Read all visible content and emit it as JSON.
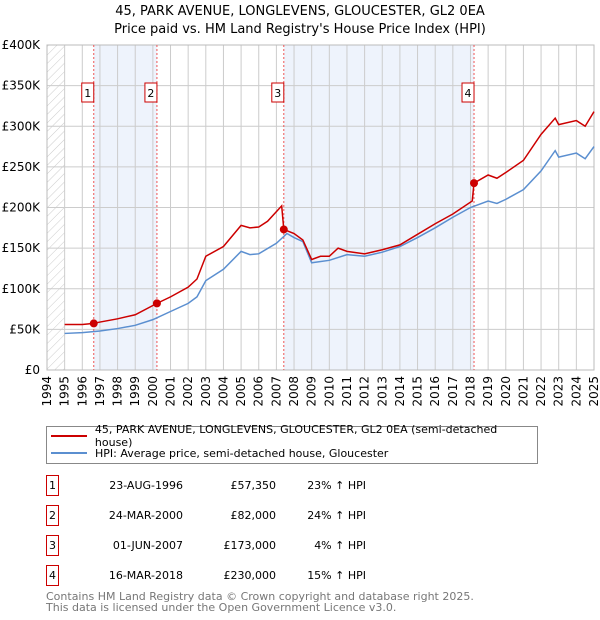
{
  "chart_data": {
    "type": "line",
    "title": "45, PARK AVENUE, LONGLEVENS, GLOUCESTER, GL2 0EA",
    "subtitle": "Price paid vs. HM Land Registry's House Price Index (HPI)",
    "xlim": [
      1994,
      2025
    ],
    "ylim": [
      0,
      400000
    ],
    "x_ticks": [
      "1994",
      "1995",
      "1996",
      "1997",
      "1998",
      "1999",
      "2000",
      "2001",
      "2002",
      "2003",
      "2004",
      "2005",
      "2006",
      "2007",
      "2008",
      "2009",
      "2010",
      "2011",
      "2012",
      "2013",
      "2014",
      "2015",
      "2016",
      "2017",
      "2018",
      "2019",
      "2020",
      "2021",
      "2022",
      "2023",
      "2024",
      "2025"
    ],
    "y_ticks": [
      {
        "v": 0,
        "label": "£0"
      },
      {
        "v": 50000,
        "label": "£50K"
      },
      {
        "v": 100000,
        "label": "£100K"
      },
      {
        "v": 150000,
        "label": "£150K"
      },
      {
        "v": 200000,
        "label": "£200K"
      },
      {
        "v": 250000,
        "label": "£250K"
      },
      {
        "v": 300000,
        "label": "£300K"
      },
      {
        "v": 350000,
        "label": "£350K"
      },
      {
        "v": 400000,
        "label": "£400K"
      }
    ],
    "grid": true,
    "series": [
      {
        "name": "45, PARK AVENUE, LONGLEVENS, GLOUCESTER, GL2 0EA (semi-detached house)",
        "color": "#cc0000",
        "x": [
          1995,
          1996,
          1996.65,
          1997,
          1998,
          1999,
          2000.23,
          2001,
          2002,
          2002.5,
          2003,
          2004,
          2005,
          2005.5,
          2006,
          2006.5,
          2007.3,
          2007.42,
          2008,
          2008.5,
          2009,
          2009.5,
          2010,
          2010.5,
          2011,
          2012,
          2013,
          2014,
          2015,
          2016,
          2017,
          2018.1,
          2018.2,
          2019,
          2019.5,
          2020,
          2021,
          2022,
          2022.8,
          2023,
          2024,
          2024.5,
          2025
        ],
        "y": [
          56000,
          56000,
          57350,
          59000,
          63000,
          68000,
          82000,
          90000,
          102000,
          112000,
          140000,
          152000,
          178000,
          175000,
          176000,
          183000,
          202000,
          173000,
          168000,
          160000,
          136000,
          140000,
          140000,
          150000,
          146000,
          143000,
          148000,
          154000,
          167000,
          180000,
          192000,
          208000,
          230000,
          240000,
          236000,
          243000,
          258000,
          290000,
          310000,
          302000,
          307000,
          300000,
          318000
        ]
      },
      {
        "name": "HPI: Average price, semi-detached house, Gloucester",
        "color": "#5b8fd0",
        "x": [
          1995,
          1996,
          1997,
          1998,
          1999,
          2000,
          2001,
          2002,
          2002.5,
          2003,
          2004,
          2005,
          2005.5,
          2006,
          2007,
          2007.6,
          2008,
          2008.5,
          2009,
          2010,
          2011,
          2012,
          2013,
          2014,
          2015,
          2016,
          2017,
          2018,
          2019,
          2019.5,
          2020,
          2021,
          2022,
          2022.8,
          2023,
          2024,
          2024.5,
          2025
        ],
        "y": [
          45000,
          46000,
          48000,
          51000,
          55000,
          62000,
          72000,
          82000,
          90000,
          110000,
          124000,
          146000,
          142000,
          143000,
          156000,
          168000,
          163000,
          158000,
          132000,
          135000,
          142000,
          140000,
          145000,
          152000,
          163000,
          175000,
          188000,
          200000,
          208000,
          205000,
          210000,
          222000,
          245000,
          270000,
          262000,
          267000,
          260000,
          275000
        ]
      }
    ],
    "sales": [
      {
        "label": "1",
        "x": 1996.65,
        "y": 57350,
        "date": "23-AUG-1996",
        "price": "£57,350",
        "hpi": "23% ↑ HPI"
      },
      {
        "label": "2",
        "x": 2000.23,
        "y": 82000,
        "date": "24-MAR-2000",
        "price": "£82,000",
        "hpi": "24% ↑ HPI"
      },
      {
        "label": "3",
        "x": 2007.42,
        "y": 173000,
        "date": "01-JUN-2007",
        "price": "£173,000",
        "hpi": "4% ↑ HPI"
      },
      {
        "label": "4",
        "x": 2018.2,
        "y": 230000,
        "date": "16-MAR-2018",
        "price": "£230,000",
        "hpi": "15% ↑ HPI"
      }
    ],
    "shaded_ranges": [
      [
        1996.65,
        2000.23
      ],
      [
        2007.42,
        2018.2
      ]
    ],
    "hatched_range": [
      1994,
      1995
    ],
    "legend_position": "bottom"
  },
  "footer": {
    "line1": "Contains HM Land Registry data © Crown copyright and database right 2025.",
    "line2": "This data is licensed under the Open Government Licence v3.0."
  }
}
